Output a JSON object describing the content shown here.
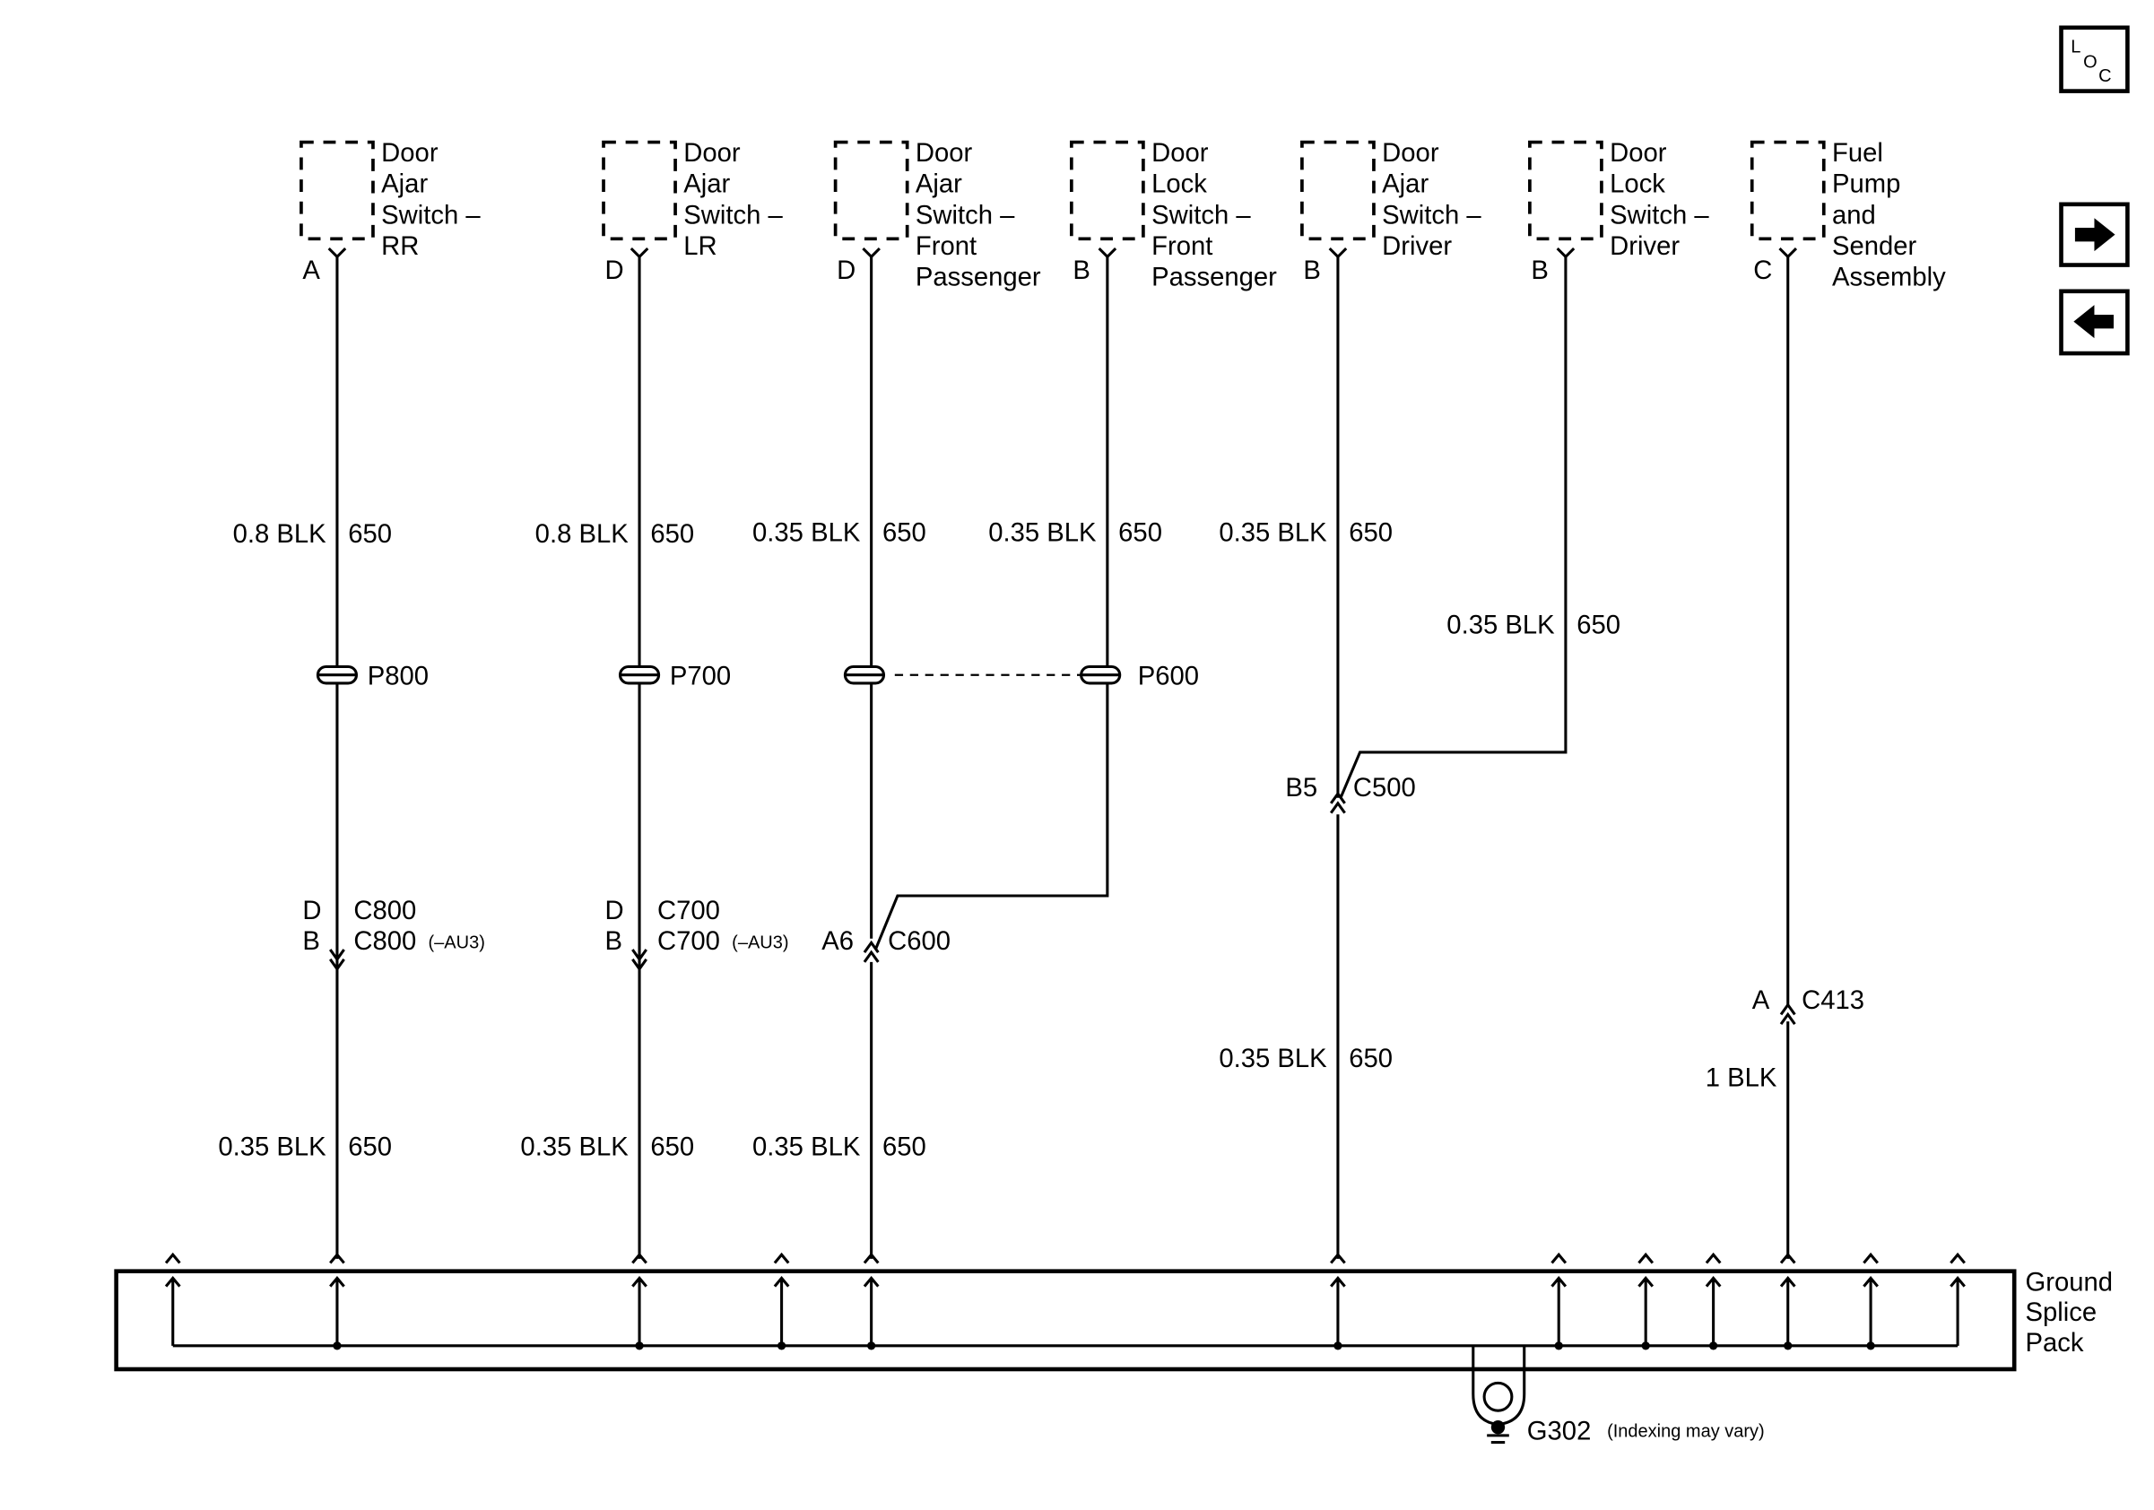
{
  "components": [
    {
      "lines": [
        "Door",
        "Ajar",
        "Switch –",
        "RR"
      ],
      "pin": "A"
    },
    {
      "lines": [
        "Door",
        "Ajar",
        "Switch –",
        "LR"
      ],
      "pin": "D"
    },
    {
      "lines": [
        "Door",
        "Ajar",
        "Switch –",
        "Front",
        "Passenger"
      ],
      "pin": "D"
    },
    {
      "lines": [
        "Door",
        "Lock",
        "Switch –",
        "Front",
        "Passenger"
      ],
      "pin": "B"
    },
    {
      "lines": [
        "Door",
        "Ajar",
        "Switch –",
        "Driver"
      ],
      "pin": "B"
    },
    {
      "lines": [
        "Door",
        "Lock",
        "Switch –",
        "Driver"
      ],
      "pin": "B"
    },
    {
      "lines": [
        "Fuel",
        "Pump",
        "and",
        "Sender",
        "Assembly"
      ],
      "pin": "C"
    }
  ],
  "upper_wires": [
    {
      "size_color": "0.8 BLK",
      "circuit": "650"
    },
    {
      "size_color": "0.8 BLK",
      "circuit": "650"
    },
    {
      "size_color": "0.35 BLK",
      "circuit": "650"
    },
    {
      "size_color": "0.35 BLK",
      "circuit": "650"
    },
    {
      "size_color": "0.35 BLK",
      "circuit": "650"
    },
    {
      "size_color": "0.35 BLK",
      "circuit": "650"
    }
  ],
  "splices": [
    "P800",
    "P700",
    "P600"
  ],
  "connectors": {
    "c800": {
      "pin1": "D",
      "name1": "C800",
      "pin2": "B",
      "name2": "C800",
      "note": "(–AU3)"
    },
    "c700": {
      "pin1": "D",
      "name1": "C700",
      "pin2": "B",
      "name2": "C700",
      "note": "(–AU3)"
    },
    "c600": {
      "pin": "A6",
      "name": "C600"
    },
    "c500": {
      "pin": "B5",
      "name": "C500"
    },
    "c413": {
      "pin": "A",
      "name": "C413"
    }
  },
  "lower_wires": [
    {
      "size_color": "0.35 BLK",
      "circuit": "650"
    },
    {
      "size_color": "0.35 BLK",
      "circuit": "650"
    },
    {
      "size_color": "0.35 BLK",
      "circuit": "650"
    },
    {
      "size_color": "0.35 BLK",
      "circuit": "650"
    },
    {
      "size_color": "1 BLK",
      "circuit": ""
    }
  ],
  "splice_pack": {
    "lines": [
      "Ground",
      "Splice",
      "Pack"
    ]
  },
  "ground": {
    "name": "G302",
    "note": "(Indexing may vary)"
  },
  "nav": {
    "loc_letters": [
      "L",
      "O",
      "C"
    ],
    "next": "right-arrow-icon",
    "prev": "left-arrow-icon"
  }
}
